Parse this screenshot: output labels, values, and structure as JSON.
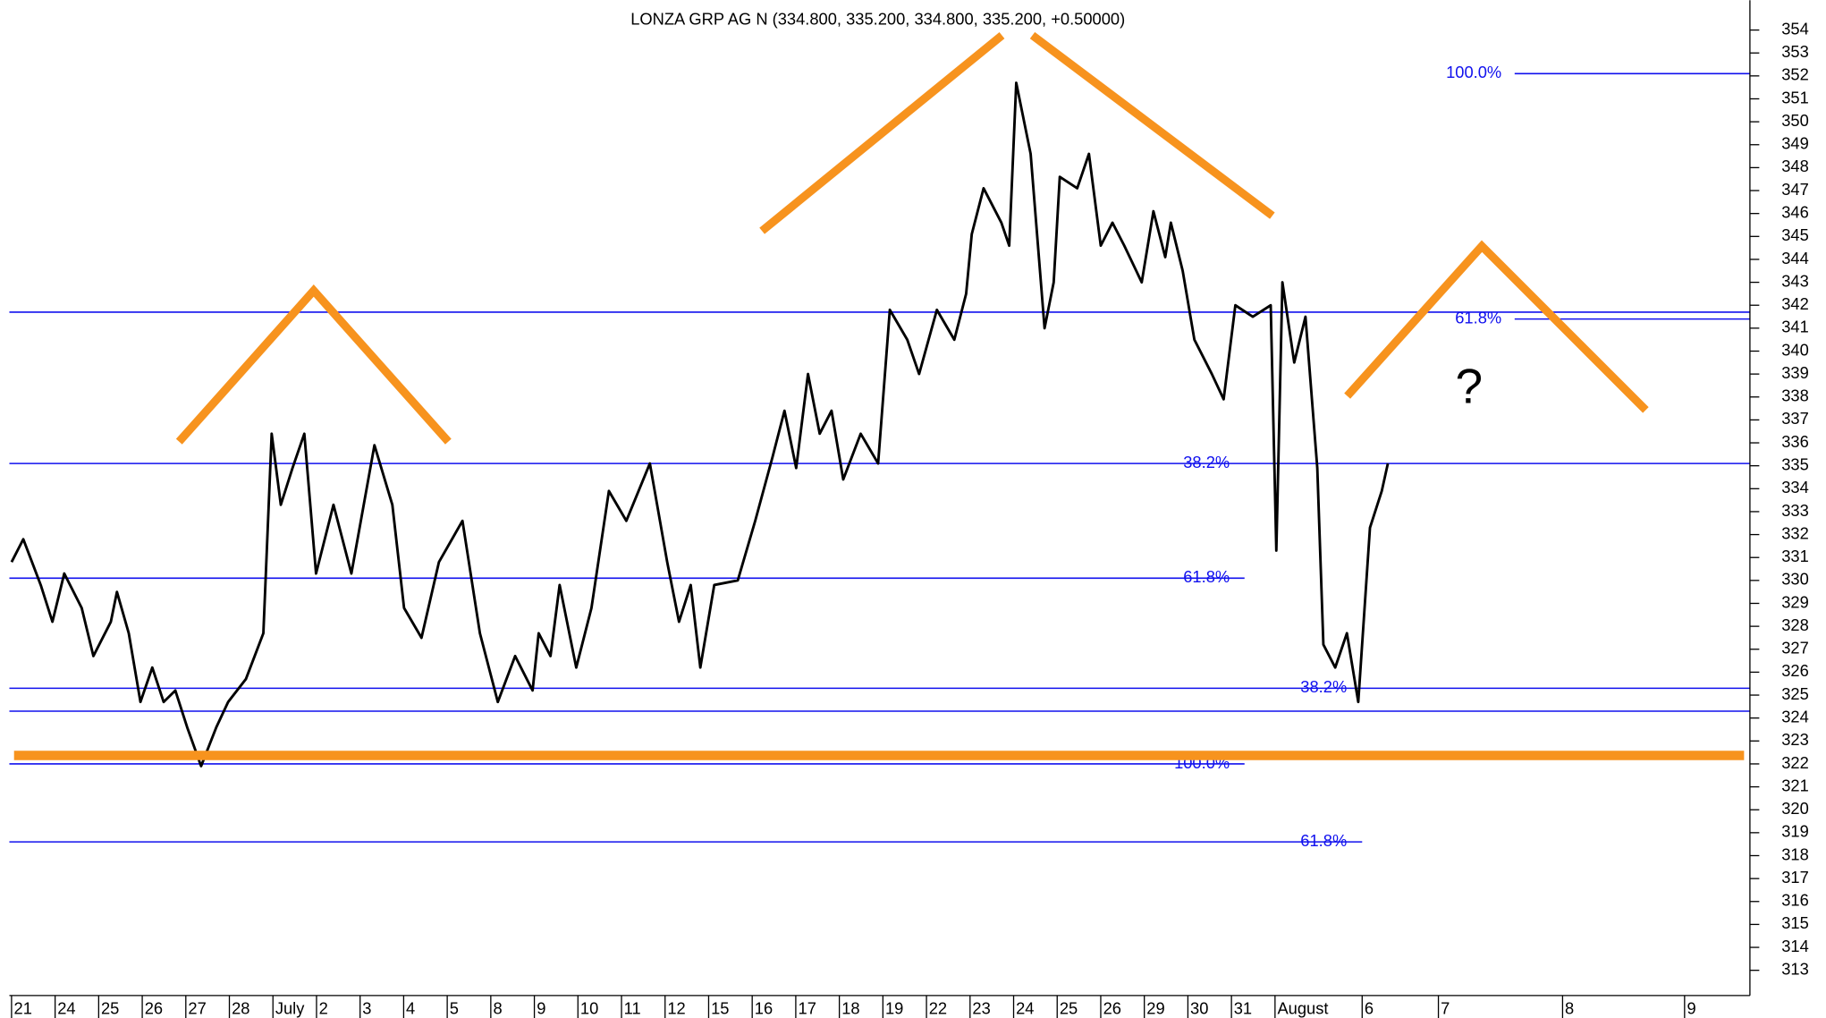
{
  "chart_data": {
    "type": "line",
    "title": "LONZA GRP AG N (334.800, 335.200, 334.800, 335.200, +0.50000)",
    "annotation": "?",
    "xlim": [
      -0.05,
      39.9
    ],
    "ylim": [
      311.9,
      355.3
    ],
    "xticks": [
      {
        "value": 0,
        "label": "21"
      },
      {
        "value": 1,
        "label": "24"
      },
      {
        "value": 2,
        "label": "25"
      },
      {
        "value": 3,
        "label": "26"
      },
      {
        "value": 4,
        "label": "27"
      },
      {
        "value": 5,
        "label": "28"
      },
      {
        "value": 6,
        "label": "July"
      },
      {
        "value": 7,
        "label": "2"
      },
      {
        "value": 8,
        "label": "3"
      },
      {
        "value": 9,
        "label": "4"
      },
      {
        "value": 10,
        "label": "5"
      },
      {
        "value": 11,
        "label": "8"
      },
      {
        "value": 12,
        "label": "9"
      },
      {
        "value": 13,
        "label": "10"
      },
      {
        "value": 14,
        "label": "11"
      },
      {
        "value": 15,
        "label": "12"
      },
      {
        "value": 16,
        "label": "15"
      },
      {
        "value": 17,
        "label": "16"
      },
      {
        "value": 18,
        "label": "17"
      },
      {
        "value": 19,
        "label": "18"
      },
      {
        "value": 20,
        "label": "19"
      },
      {
        "value": 21,
        "label": "22"
      },
      {
        "value": 22,
        "label": "23"
      },
      {
        "value": 23,
        "label": "24"
      },
      {
        "value": 24,
        "label": "25"
      },
      {
        "value": 25,
        "label": "26"
      },
      {
        "value": 26,
        "label": "29"
      },
      {
        "value": 27,
        "label": "30"
      },
      {
        "value": 28,
        "label": "31"
      },
      {
        "value": 29,
        "label": "August"
      },
      {
        "value": 31,
        "label": "6"
      },
      {
        "value": 32.75,
        "label": "7"
      },
      {
        "value": 35.6,
        "label": "8"
      },
      {
        "value": 38.4,
        "label": "9"
      }
    ],
    "yticks": [
      313,
      314,
      315,
      316,
      317,
      318,
      319,
      320,
      321,
      322,
      323,
      324,
      325,
      326,
      327,
      328,
      329,
      330,
      331,
      332,
      333,
      334,
      335,
      336,
      337,
      338,
      339,
      340,
      341,
      342,
      343,
      344,
      345,
      346,
      347,
      348,
      349,
      350,
      351,
      352,
      353,
      354
    ],
    "levels": [
      {
        "value": 352.1,
        "label": "100.0%",
        "label_x": 34.2,
        "x": [
          34.5,
          39.9
        ]
      },
      {
        "value": 341.7,
        "x": [
          -0.05,
          39.9
        ]
      },
      {
        "value": 341.4,
        "label": "61.8%",
        "label_x": 34.2,
        "x": [
          34.5,
          39.9
        ]
      },
      {
        "value": 335.1,
        "label": "38.2%",
        "label_x": 27.96,
        "x": [
          -0.05,
          39.9
        ]
      },
      {
        "value": 330.1,
        "label": "61.8%",
        "label_x": 27.96,
        "x": [
          -0.05,
          28.3
        ]
      },
      {
        "value": 325.3,
        "label": "38.2%",
        "label_x": 30.65,
        "x": [
          -0.05,
          39.9
        ]
      },
      {
        "value": 324.3,
        "x": [
          -0.05,
          39.9
        ]
      },
      {
        "value": 322.0,
        "label": "100.0%",
        "label_x": 27.96,
        "x": [
          -0.05,
          28.3
        ]
      },
      {
        "value": 318.6,
        "label": "61.8%",
        "label_x": 30.65,
        "x": [
          -0.05,
          31.0
        ]
      }
    ],
    "series": [
      {
        "color": "#000000",
        "x": [
          0,
          0.27,
          0.67,
          0.94,
          1.21,
          1.61,
          1.88,
          2.28,
          2.42,
          2.69,
          2.96,
          3.23,
          3.49,
          3.76,
          4.03,
          4.35,
          4.7,
          4.97,
          5.38,
          5.78,
          5.97,
          6.18,
          6.45,
          6.72,
          6.99,
          7.39,
          7.8,
          8.33,
          8.74,
          9.01,
          9.41,
          9.81,
          10.35,
          10.75,
          11.16,
          11.56,
          11.96,
          12.1,
          12.37,
          12.58,
          12.96,
          13.31,
          13.71,
          14.11,
          14.65,
          15.05,
          15.32,
          15.59,
          15.81,
          16.13,
          16.67,
          17.07,
          17.47,
          17.74,
          18.01,
          18.28,
          18.55,
          18.82,
          19.09,
          19.49,
          19.89,
          20.16,
          20.56,
          20.83,
          21.24,
          21.64,
          21.91,
          22.04,
          22.31,
          22.72,
          22.9,
          23.06,
          23.39,
          23.71,
          23.92,
          24.06,
          24.46,
          24.73,
          25.0,
          25.27,
          25.54,
          25.94,
          26.21,
          26.48,
          26.61,
          26.88,
          27.15,
          27.55,
          27.82,
          28.09,
          28.49,
          28.9,
          29.03,
          29.17,
          29.44,
          29.7,
          29.97,
          30.11,
          30.38,
          30.65,
          30.91,
          31.18,
          31.45,
          31.59
        ],
        "values": [
          330.8,
          331.8,
          329.8,
          328.2,
          330.3,
          328.8,
          326.7,
          328.2,
          329.5,
          327.7,
          324.7,
          326.2,
          324.7,
          325.2,
          323.6,
          321.9,
          323.6,
          324.7,
          325.7,
          327.7,
          336.4,
          333.3,
          334.9,
          336.4,
          330.3,
          333.3,
          330.3,
          335.9,
          333.3,
          328.8,
          327.5,
          330.8,
          332.6,
          327.7,
          324.7,
          326.7,
          325.2,
          327.7,
          326.7,
          329.8,
          326.2,
          328.8,
          333.9,
          332.6,
          335.1,
          330.8,
          328.2,
          329.8,
          326.2,
          329.8,
          330.0,
          332.6,
          335.4,
          337.4,
          334.9,
          339.0,
          336.4,
          337.4,
          334.4,
          336.4,
          335.1,
          341.8,
          340.5,
          339.0,
          341.8,
          340.5,
          342.5,
          345.1,
          347.1,
          345.6,
          344.6,
          351.7,
          348.6,
          341.0,
          343.0,
          347.6,
          347.1,
          348.6,
          344.6,
          345.6,
          344.6,
          343.0,
          346.1,
          344.1,
          345.6,
          343.5,
          340.5,
          339.0,
          337.9,
          342.0,
          341.5,
          342.0,
          331.3,
          343.0,
          339.5,
          341.5,
          334.9,
          327.2,
          326.2,
          327.7,
          324.7,
          332.3,
          333.9,
          335.1
        ]
      }
    ]
  }
}
